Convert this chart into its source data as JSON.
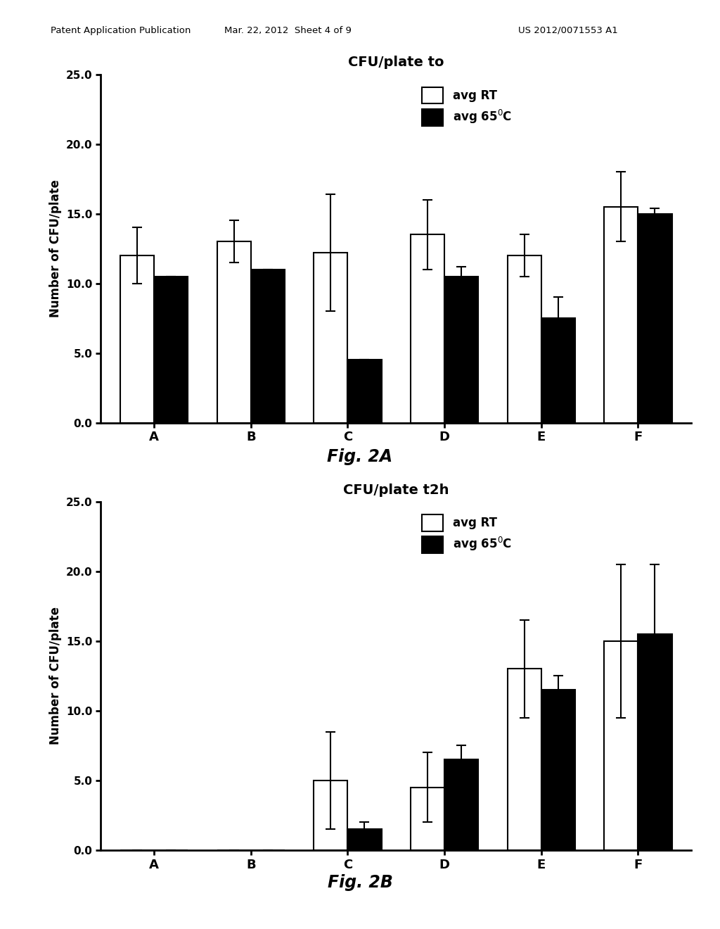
{
  "header_left": "Patent Application Publication",
  "header_mid": "Mar. 22, 2012  Sheet 4 of 9",
  "header_right": "US 2012/0071553 A1",
  "fig2a": {
    "title": "CFU/plate to",
    "ylabel": "Number of CFU/plate",
    "categories": [
      "A",
      "B",
      "C",
      "D",
      "E",
      "F"
    ],
    "rt_values": [
      12.0,
      13.0,
      12.2,
      13.5,
      12.0,
      15.5
    ],
    "rt_errors": [
      2.0,
      1.5,
      4.2,
      2.5,
      1.5,
      2.5
    ],
    "c65_values": [
      10.5,
      11.0,
      4.5,
      10.5,
      7.5,
      15.0
    ],
    "c65_errors": [
      0.0,
      0.0,
      0.0,
      0.7,
      1.5,
      0.4
    ],
    "ylim": [
      0,
      25
    ],
    "yticks": [
      0.0,
      5.0,
      10.0,
      15.0,
      20.0,
      25.0
    ],
    "figcap": "Fig. 2A"
  },
  "fig2b": {
    "title": "CFU/plate t2h",
    "ylabel": "Number of CFU/plate",
    "categories": [
      "A",
      "B",
      "C",
      "D",
      "E",
      "F"
    ],
    "rt_values": [
      0.0,
      0.0,
      5.0,
      4.5,
      13.0,
      15.0
    ],
    "rt_errors": [
      0.0,
      0.0,
      3.5,
      2.5,
      3.5,
      5.5
    ],
    "c65_values": [
      0.0,
      0.0,
      1.5,
      6.5,
      11.5,
      15.5
    ],
    "c65_errors": [
      0.0,
      0.0,
      0.5,
      1.0,
      1.0,
      5.0
    ],
    "ylim": [
      0,
      25
    ],
    "yticks": [
      0.0,
      5.0,
      10.0,
      15.0,
      20.0,
      25.0
    ],
    "figcap": "Fig. 2B"
  },
  "legend_rt_label": "avg RT",
  "legend_c65_label": "avg 65$^0$C",
  "bar_width": 0.35,
  "bar_color_rt": "#ffffff",
  "bar_color_c65": "#000000",
  "bar_edgecolor": "#000000",
  "background_color": "#ffffff",
  "header_fontsize": 9.5,
  "title_fontsize": 14,
  "ylabel_fontsize": 12,
  "tick_fontsize": 11,
  "legend_fontsize": 12,
  "figcap_fontsize": 17
}
